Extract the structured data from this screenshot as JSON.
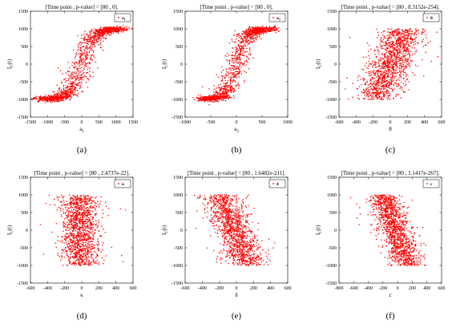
{
  "chart_data": [
    {
      "panel": "a",
      "caption": "(a)",
      "type": "scatter",
      "title": "[Time point , p-value] = [80 , 0].",
      "xlabel": "a",
      "xlabel_sub": "1",
      "ylabel": "I",
      "ylabel_sub": "C",
      "ylabel_tail": "(t)",
      "legend": "a",
      "legend_sub": "1",
      "legend_position": "top-right",
      "xlim": [
        -1500,
        1500
      ],
      "xticks": [
        -1500,
        -1000,
        -500,
        0,
        500,
        1000,
        1500
      ],
      "ylim": [
        -1500,
        1500
      ],
      "yticks": [
        -1500,
        -1000,
        -500,
        0,
        500,
        1000,
        1500
      ],
      "color": "#ff0000",
      "pattern": {
        "kind": "sigmoid",
        "x_center": 0,
        "x_scale": 380,
        "x_min": -1150,
        "x_max": 1150,
        "x_noise": 190,
        "y_noise": 40,
        "n": 1300
      },
      "pvalue": 0
    },
    {
      "panel": "b",
      "caption": "(b)",
      "type": "scatter",
      "title": "[Time point , p-value] = [80 , 0].",
      "xlabel": "a",
      "xlabel_sub": "3",
      "ylabel": "I",
      "ylabel_sub": "C",
      "ylabel_tail": "(t)",
      "legend": "a",
      "legend_sub": "3",
      "legend_position": "top-right",
      "xlim": [
        -1000,
        1000
      ],
      "xticks": [
        -1000,
        -500,
        0,
        500,
        1000
      ],
      "ylim": [
        -1500,
        1500
      ],
      "yticks": [
        -1500,
        -1000,
        -500,
        0,
        500,
        1000,
        1500
      ],
      "color": "#ff0000",
      "pattern": {
        "kind": "sigmoid",
        "x_center": 0,
        "x_scale": 220,
        "x_min": -650,
        "x_max": 650,
        "x_noise": 110,
        "y_noise": 40,
        "n": 1300
      },
      "pvalue": 0
    },
    {
      "panel": "c",
      "caption": "(c)",
      "type": "scatter",
      "title": "[Time point , p-value] = [80 , 8.3152e-254].",
      "xlabel": "θ",
      "ylabel": "I",
      "ylabel_sub": "C",
      "ylabel_tail": "(t)",
      "legend": "θ",
      "legend_position": "top-right",
      "xlim": [
        -600,
        600
      ],
      "xticks": [
        -600,
        -400,
        -200,
        0,
        200,
        400,
        600
      ],
      "ylim": [
        -1500,
        1500
      ],
      "yticks": [
        -1500,
        -1000,
        -500,
        0,
        500,
        1000,
        1500
      ],
      "color": "#ff0000",
      "pattern": {
        "kind": "linear",
        "x_center": 0,
        "slope": 0.16,
        "x_noise": 120,
        "y_spread": 1000,
        "n": 1300
      },
      "pvalue": 8.3152e-254
    },
    {
      "panel": "d",
      "caption": "(d)",
      "type": "scatter",
      "title": "[Time point , p-value] = [80 , 2.4737e-22].",
      "xlabel": "κ",
      "ylabel": "I",
      "ylabel_sub": "C",
      "ylabel_tail": "(t)",
      "legend": "κ",
      "legend_position": "top-right",
      "xlim": [
        -600,
        600
      ],
      "xticks": [
        -600,
        -400,
        -200,
        0,
        200,
        400,
        600
      ],
      "ylim": [
        -1500,
        1500
      ],
      "yticks": [
        -1500,
        -1000,
        -500,
        0,
        500,
        1000,
        1500
      ],
      "color": "#ff0000",
      "pattern": {
        "kind": "linear",
        "x_center": -20,
        "slope": -0.02,
        "x_noise": 110,
        "y_spread": 1000,
        "n": 1300
      },
      "pvalue": 2.4737e-22
    },
    {
      "panel": "e",
      "caption": "(e)",
      "type": "scatter",
      "title": "[Time point , p-value] = [80 , 1.6482e-211].",
      "xlabel": "δ",
      "ylabel": "I",
      "ylabel_sub": "C",
      "ylabel_tail": "(t)",
      "legend": "δ",
      "legend_position": "top-right",
      "xlim": [
        -600,
        600
      ],
      "xticks": [
        -600,
        -400,
        -200,
        0,
        200,
        400,
        600
      ],
      "ylim": [
        -1500,
        1500
      ],
      "yticks": [
        -1500,
        -1000,
        -500,
        0,
        500,
        1000,
        1500
      ],
      "color": "#ff0000",
      "pattern": {
        "kind": "linear",
        "x_center": -20,
        "slope": -0.16,
        "x_noise": 110,
        "y_spread": 1000,
        "n": 1300
      },
      "pvalue": 1.6482e-211
    },
    {
      "panel": "f",
      "caption": "(f)",
      "type": "scatter",
      "title": "[Time point , p-value] = [80 , 1.1417e-267].",
      "xlabel": "c",
      "ylabel": "I",
      "ylabel_sub": "C",
      "ylabel_tail": "(t)",
      "legend": "c",
      "legend_position": "top-right",
      "xlim": [
        -800,
        600
      ],
      "xticks": [
        -800,
        -600,
        -400,
        -200,
        0,
        200,
        400,
        600
      ],
      "ylim": [
        -1500,
        1500
      ],
      "yticks": [
        -1500,
        -1000,
        -500,
        0,
        500,
        1000,
        1500
      ],
      "color": "#ff0000",
      "pattern": {
        "kind": "linear",
        "x_center": -30,
        "slope": -0.17,
        "x_noise": 110,
        "y_spread": 1000,
        "n": 1300
      },
      "pvalue": 1.1417e-267
    }
  ]
}
